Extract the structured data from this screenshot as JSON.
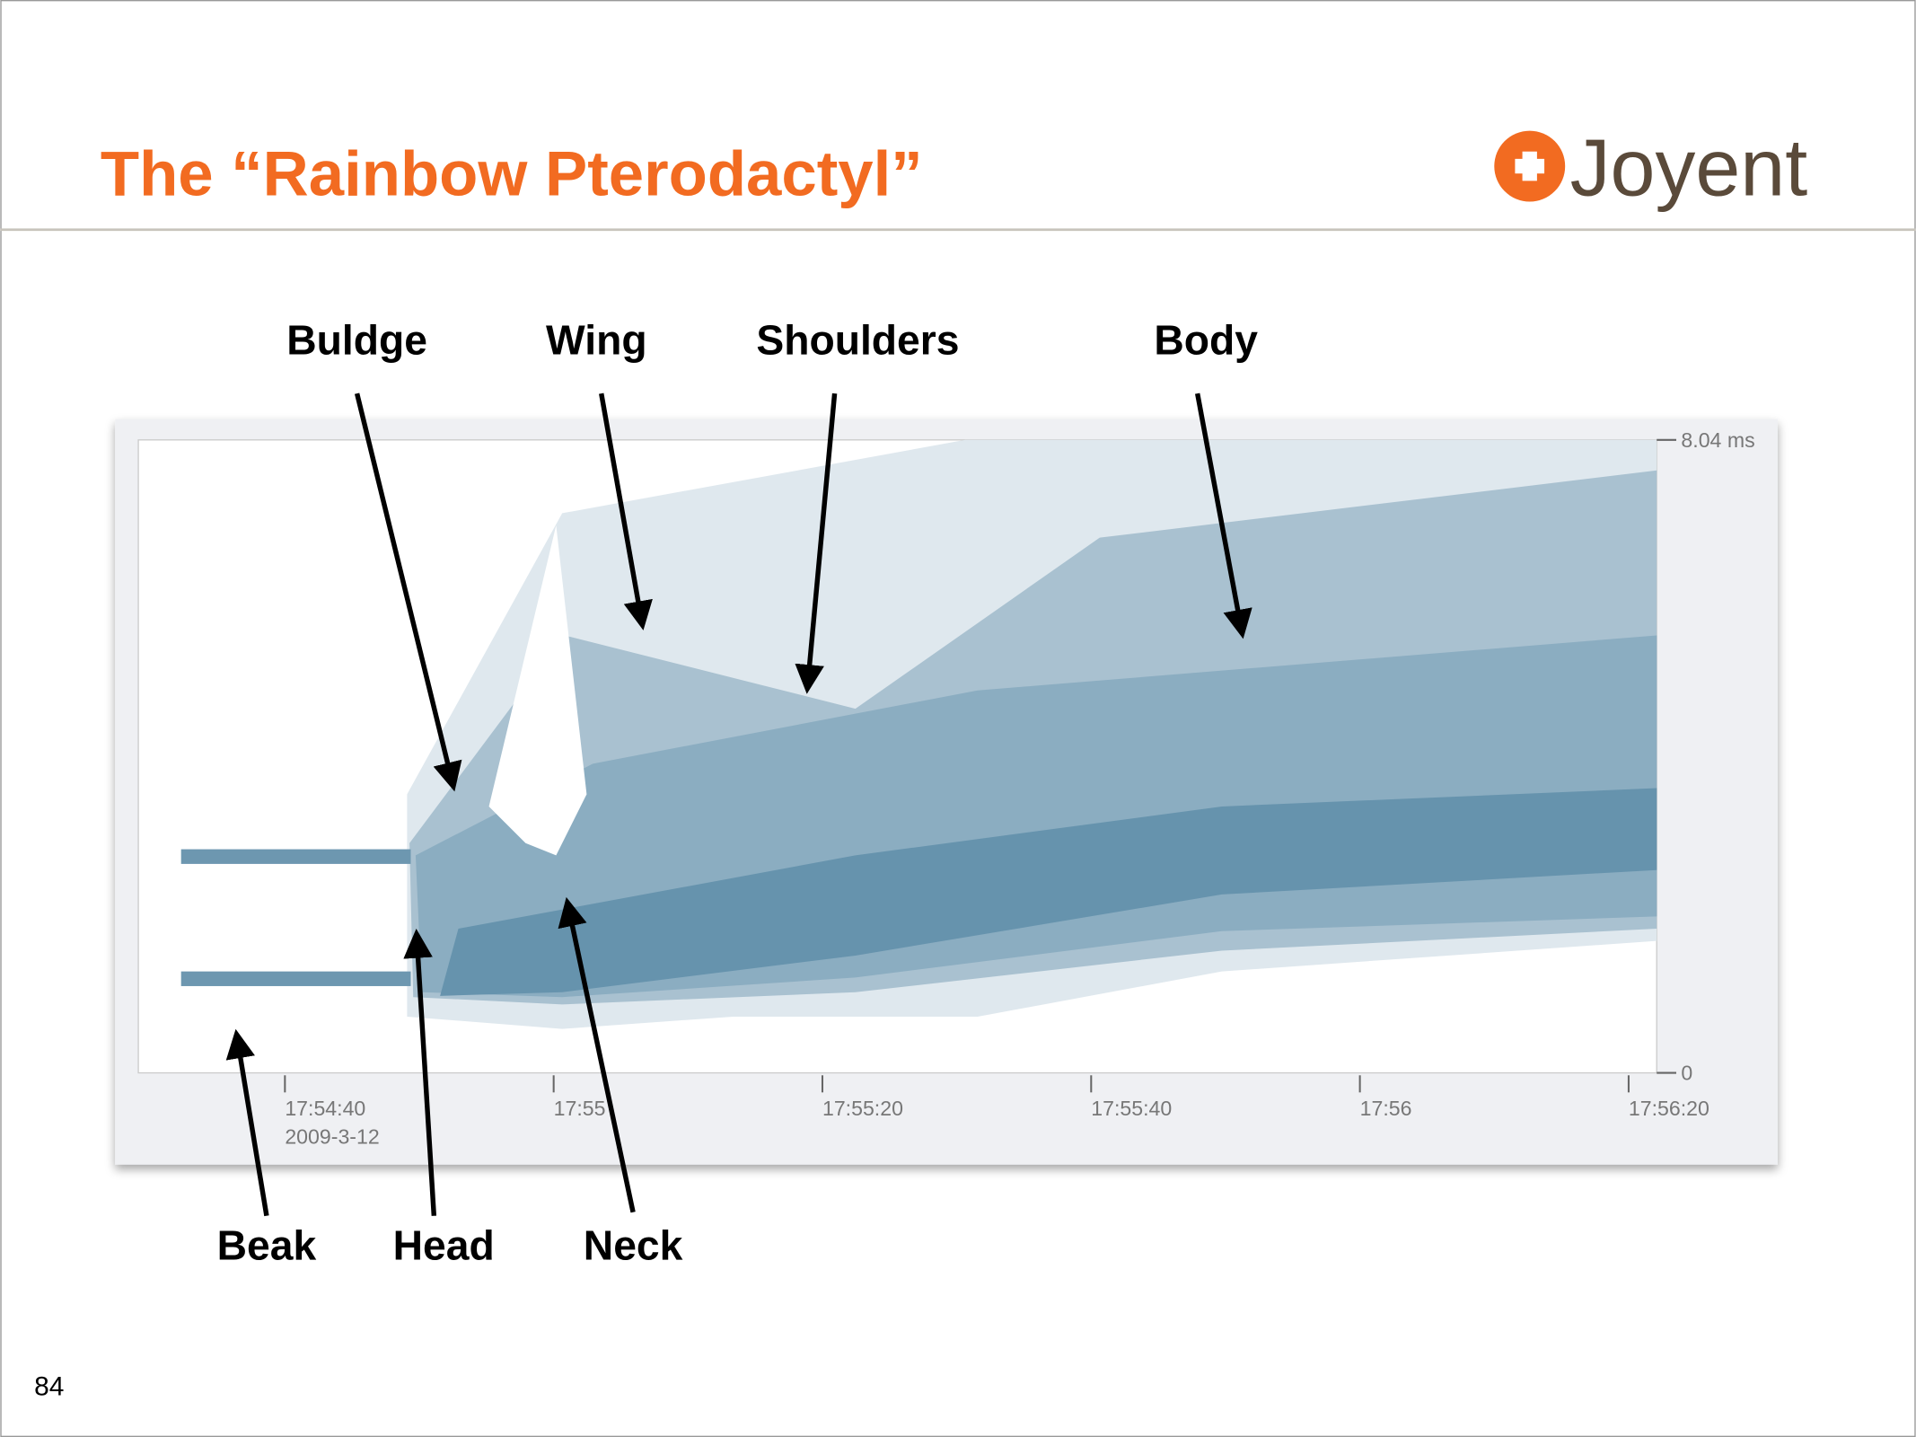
{
  "header": {
    "title": "The “Rainbow Pterodactyl”",
    "logo": "Joyent"
  },
  "annotations_top": [
    "Buldge",
    "Wing",
    "Shoulders",
    "Body"
  ],
  "annotations_bottom": [
    "Beak",
    "Head",
    "Neck"
  ],
  "heatmap": {
    "y_labels": [
      "8.04 ms",
      "0"
    ],
    "x_labels": [
      "17:54:40",
      "17:55",
      "17:55:20",
      "17:55:40",
      "17:56",
      "17:56:20"
    ],
    "date": "2009-3-12"
  },
  "page_number": "84"
}
